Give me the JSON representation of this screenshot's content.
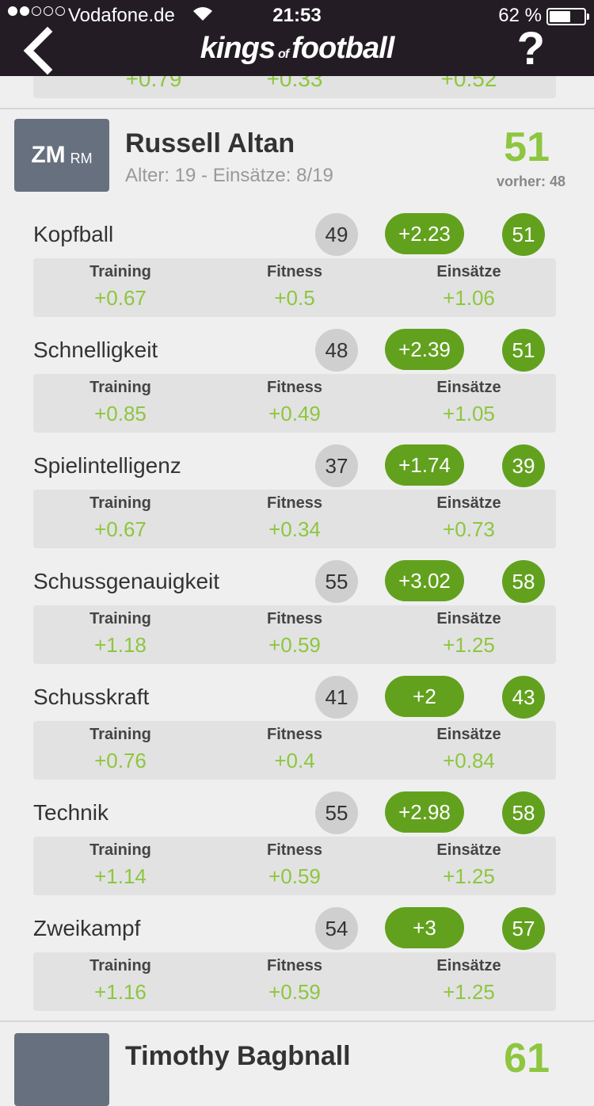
{
  "status": {
    "carrier": "Vodafone.de",
    "time": "21:53",
    "battery": "62 %",
    "battery_level": 0.62,
    "signal_bars": 2
  },
  "nav": {
    "logo_part1": "kings",
    "logo_part2": "of",
    "logo_part3": "football",
    "help": "?"
  },
  "previous_card": {
    "training": "+0.79",
    "fitness": "+0.33",
    "einsaetze": "+0.52"
  },
  "player": {
    "position_main": "ZM",
    "position_alt": "RM",
    "name": "Russell Altan",
    "meta": "Alter: 19 - Einsätze: 8/19",
    "rating": "51",
    "previous_rating": "vorher: 48"
  },
  "labels": {
    "training": "Training",
    "fitness": "Fitness",
    "einsaetze": "Einsätze"
  },
  "attributes": [
    {
      "name": "Kopfball",
      "old": "49",
      "delta": "+2.23",
      "new": "51",
      "training": "+0.67",
      "fitness": "+0.5",
      "einsaetze": "+1.06"
    },
    {
      "name": "Schnelligkeit",
      "old": "48",
      "delta": "+2.39",
      "new": "51",
      "training": "+0.85",
      "fitness": "+0.49",
      "einsaetze": "+1.05"
    },
    {
      "name": "Spielintelligenz",
      "old": "37",
      "delta": "+1.74",
      "new": "39",
      "training": "+0.67",
      "fitness": "+0.34",
      "einsaetze": "+0.73"
    },
    {
      "name": "Schussgenauigkeit",
      "old": "55",
      "delta": "+3.02",
      "new": "58",
      "training": "+1.18",
      "fitness": "+0.59",
      "einsaetze": "+1.25"
    },
    {
      "name": "Schusskraft",
      "old": "41",
      "delta": "+2",
      "new": "43",
      "training": "+0.76",
      "fitness": "+0.4",
      "einsaetze": "+0.84"
    },
    {
      "name": "Technik",
      "old": "55",
      "delta": "+2.98",
      "new": "58",
      "training": "+1.14",
      "fitness": "+0.59",
      "einsaetze": "+1.25"
    },
    {
      "name": "Zweikampf",
      "old": "54",
      "delta": "+3",
      "new": "57",
      "training": "+1.16",
      "fitness": "+0.59",
      "einsaetze": "+1.25"
    }
  ],
  "next_card": {
    "name": "Timothy Bagbnall",
    "rating": "61"
  },
  "colors": {
    "header": "#231c25",
    "accent_green": "#62a11e",
    "light_green": "#8dc63f",
    "position_box": "#67707e"
  }
}
